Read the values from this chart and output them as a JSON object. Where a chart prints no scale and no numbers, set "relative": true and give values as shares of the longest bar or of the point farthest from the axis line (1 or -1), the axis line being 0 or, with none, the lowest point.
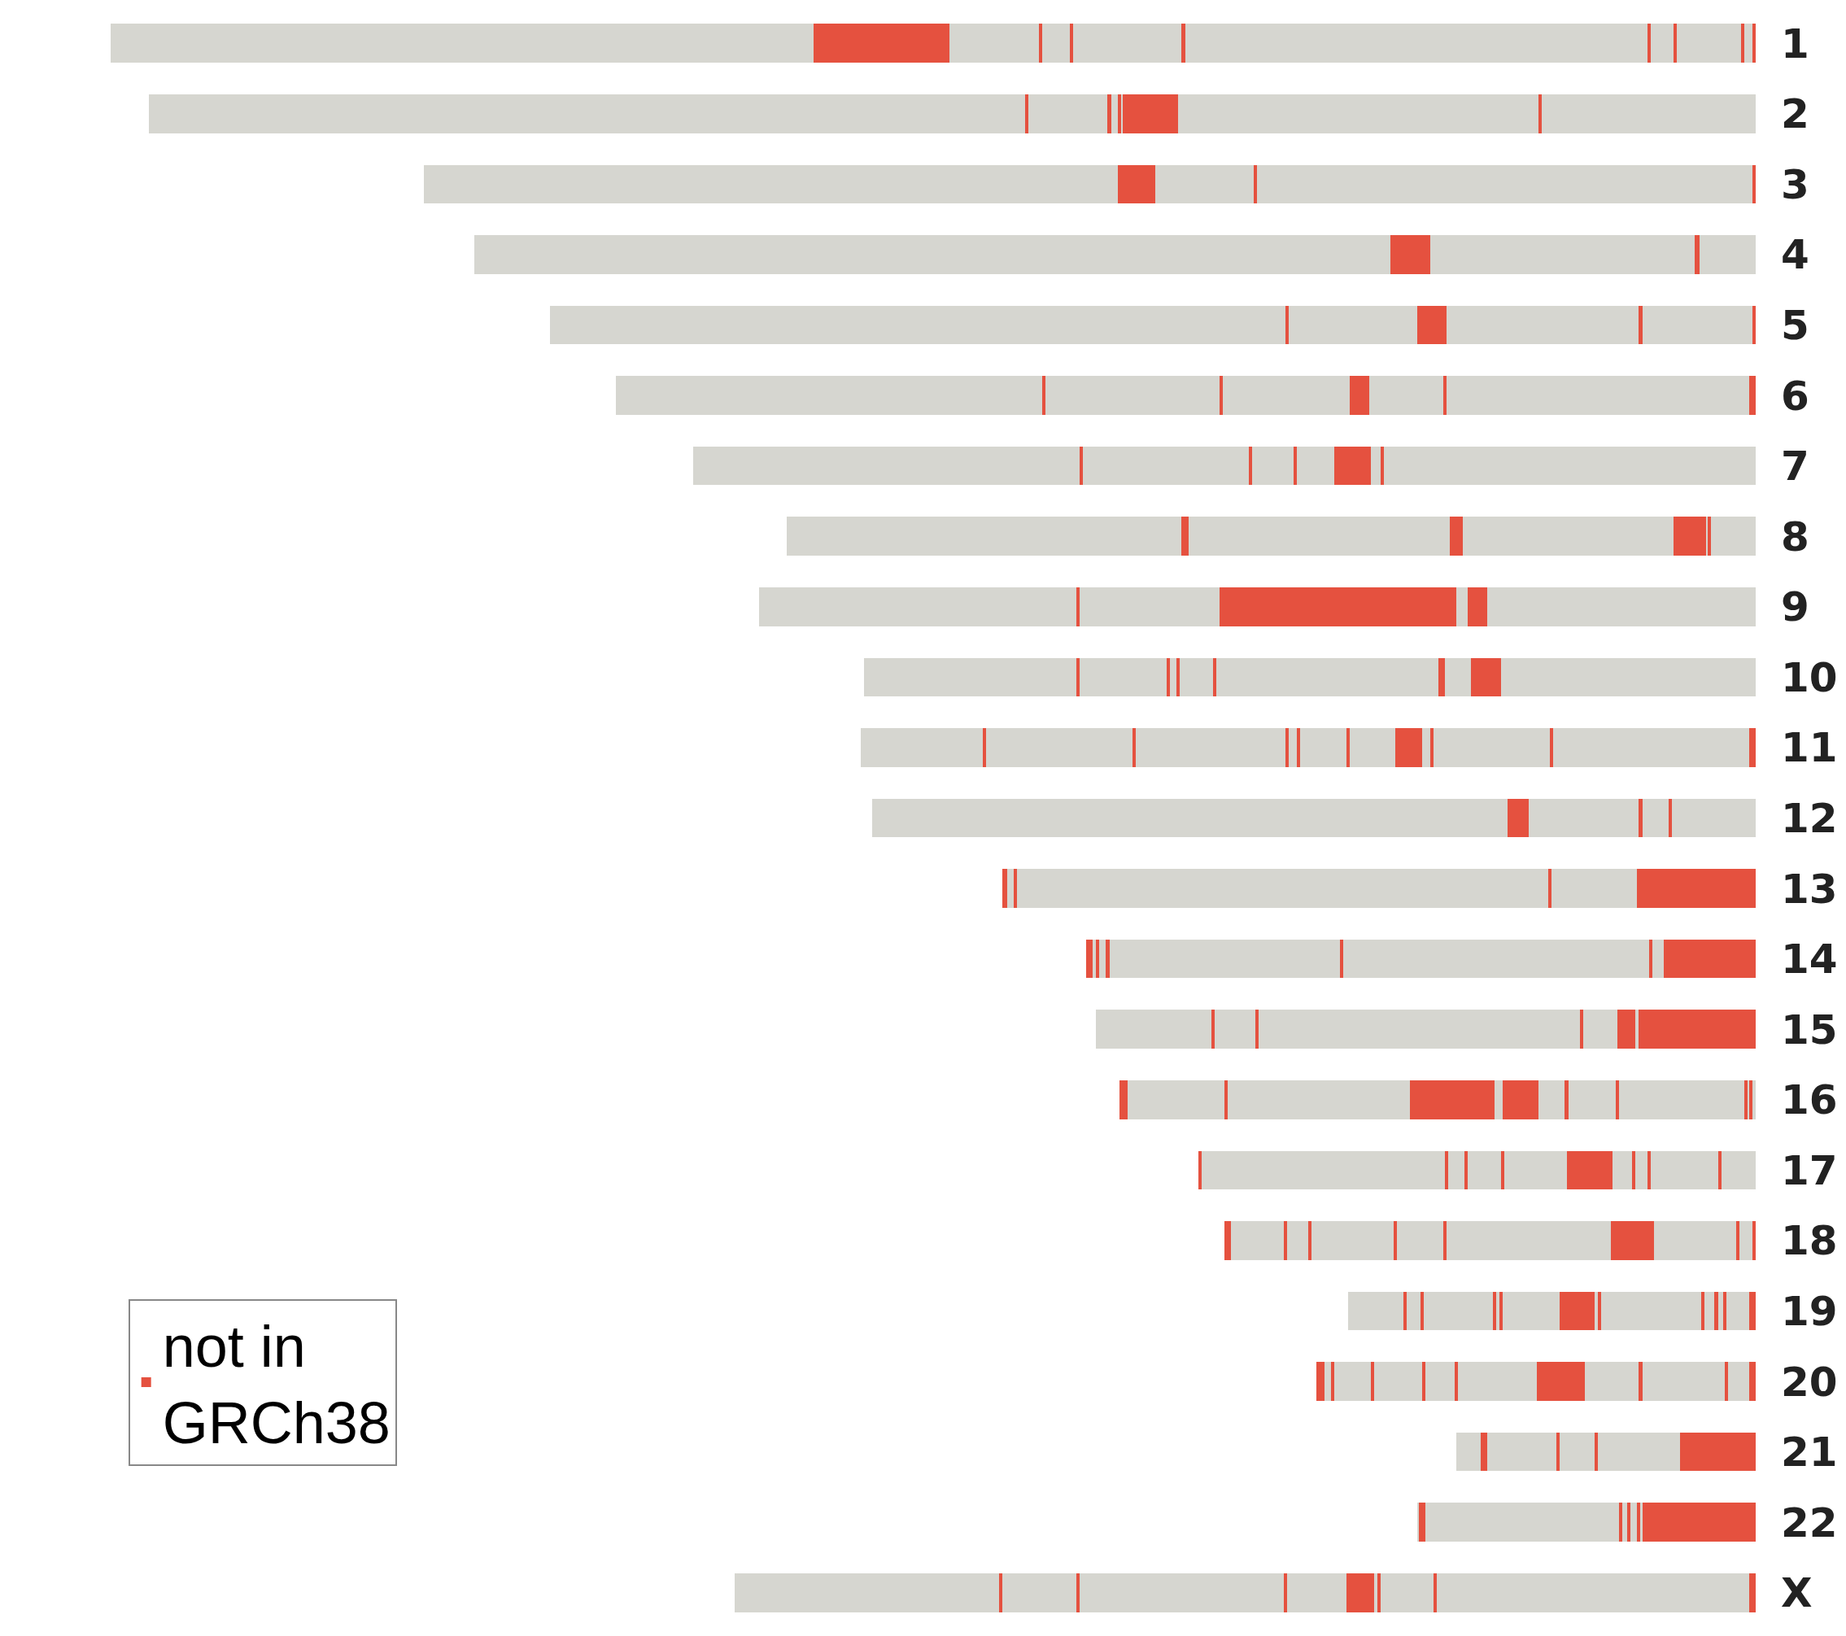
{
  "chart_data": {
    "type": "bar",
    "orientation": "horizontal",
    "stacked": true,
    "relative": true,
    "legend": "bottom left",
    "categories": [
      "1",
      "2",
      "3",
      "4",
      "5",
      "6",
      "7",
      "8",
      "9",
      "10",
      "11",
      "12",
      "13",
      "14",
      "15",
      "16",
      "17",
      "18",
      "19",
      "20",
      "21",
      "22",
      "X"
    ],
    "series": [
      {
        "name": "not in GRCh38",
        "color": "#e5513f",
        "values": [
          0.002,
          null,
          0.002,
          null,
          0.002,
          0.004,
          null,
          null,
          null,
          null,
          0.004,
          null,
          0.072,
          0.056,
          0.071,
          null,
          null,
          0.002,
          0.004,
          0.004,
          0.046,
          0.069,
          0.004
        ]
      },
      {
        "color": "#d6d6d0",
        "values": [
          0.005,
          0.13,
          0.301,
          0.034,
          0.067,
          0.184,
          0.226,
          0.027,
          0.163,
          0.155,
          0.119,
          0.051,
          0.052,
          0.007,
          0.002,
          0.002,
          0.021,
          0.008,
          0.014,
          0.013,
          0.05,
          0.001,
          0.19
        ]
      },
      {
        "color": "#e5513f",
        "values": [
          0.002,
          0.002,
          0.002,
          0.003,
          0.002,
          0.002,
          0.002,
          0.002,
          0.012,
          0.018,
          0.002,
          0.002,
          0.002,
          0.002,
          0.011,
          0.002,
          0.002,
          0.002,
          0.002,
          0.002,
          0.002,
          0.002,
          0.002
        ]
      },
      {
        "color": "#d6d6d0",
        "values": [
          0.039,
          0.219,
          0.06,
          0.161,
          0.117,
          0.045,
          0.006,
          0.001,
          0.007,
          0.016,
          0.071,
          0.016,
          0.323,
          0.186,
          0.021,
          0.001,
          0.041,
          0.05,
          0.003,
          0.05,
          0.021,
          0.004,
          0.032
        ]
      },
      {
        "color": "#e5513f",
        "values": [
          0.002,
          0.034,
          0.023,
          0.024,
          0.018,
          0.012,
          0.022,
          0.02,
          0.144,
          0.004,
          0.002,
          0.002,
          0.002,
          0.002,
          0.002,
          0.002,
          0.002,
          0.026,
          0.002,
          0.002,
          0.002,
          0.002,
          0.002
        ]
      },
      {
        "color": "#d6d6d0",
        "values": [
          0.014,
          0.001,
          0.422,
          0.557,
          0.078,
          0.077,
          0.023,
          0.128,
          0.085,
          0.135,
          0.005,
          0.067,
          0.004,
          0.14,
          0.195,
          0.076,
          0.007,
          0.1,
          0.006,
          0.033,
          0.042,
          0.003,
          0.002
        ]
      },
      {
        "color": "#e5513f",
        "values": [
          0.002,
          0.002,
          null,
          null,
          0.002,
          0.002,
          0.002,
          0.008,
          0.002,
          0.002,
          0.016,
          0.013,
          0.003,
          0.002,
          0.002,
          0.002,
          0.002,
          0.002,
          0.002,
          0.029,
          0.004,
          0.002,
          0.017
        ]
      },
      {
        "color": "#d6d6d0",
        "values": [
          0.281,
          0.004,
          null,
          null,
          0.447,
          0.106,
          0.025,
          0.159,
          0.193,
          0.02,
          0.028,
          0.386,
          null,
          0.004,
          0.025,
          0.029,
          0.012,
          0.028,
          0.061,
          0.048,
          0.015,
          0.118,
          0.036
        ]
      },
      {
        "color": "#e5513f",
        "values": [
          0.002,
          0.002,
          null,
          null,
          null,
          0.002,
          0.002,
          0.004,
          null,
          0.002,
          0.002,
          null,
          null,
          0.002,
          0.002,
          0.002,
          0.028,
          0.002,
          0.002,
          0.002,
          null,
          0.004,
          0.002
        ]
      },
      {
        "color": "#d6d6d0",
        "values": [
          0.066,
          0.048,
          null,
          null,
          null,
          0.259,
          0.101,
          0.24,
          null,
          0.004,
          0.028,
          null,
          null,
          0.002,
          0.07,
          0.016,
          0.038,
          0.05,
          0.002,
          0.018,
          null,
          0.001,
          0.124
        ]
      },
      {
        "color": "#e5513f",
        "values": [
          0.002,
          0.002,
          null,
          null,
          null,
          null,
          0.002,
          null,
          null,
          0.002,
          0.002,
          null,
          null,
          0.004,
          null,
          0.022,
          0.002,
          0.002,
          0.021,
          0.002,
          null,
          null,
          0.002
        ]
      },
      {
        "color": "#d6d6d0",
        "values": [
          0.017,
          0.533,
          null,
          null,
          null,
          null,
          0.235,
          null,
          null,
          0.053,
          0.005,
          null,
          null,
          null,
          null,
          0.005,
          0.02,
          0.013,
          0.035,
          0.029,
          null,
          null,
          0.045
        ]
      },
      {
        "color": "#e5513f",
        "values": [
          0.002,
          null,
          null,
          null,
          null,
          null,
          null,
          null,
          null,
          0.002,
          0.002,
          null,
          null,
          null,
          null,
          0.051,
          0.002,
          0.002,
          0.002,
          0.002,
          null,
          null,
          0.002
        ]
      },
      {
        "color": "#d6d6d0",
        "values": [
          0.054,
          null,
          null,
          null,
          null,
          null,
          null,
          null,
          null,
          0.129,
          0.091,
          null,
          null,
          null,
          null,
          0.111,
          0.01,
          0.032,
          0.002,
          0.022,
          null,
          null,
          0.161
        ]
      },
      {
        "color": "#e5513f",
        "values": [
          0.083,
          null,
          null,
          null,
          null,
          null,
          null,
          null,
          null,
          null,
          0.002,
          null,
          null,
          null,
          null,
          0.002,
          0.002,
          0.004,
          0.002,
          0.002,
          null,
          null,
          null
        ]
      },
      {
        "color": "#d6d6d0",
        "values": [
          0.427,
          null,
          null,
          null,
          null,
          null,
          null,
          null,
          null,
          null,
          0.089,
          null,
          null,
          null,
          null,
          0.059,
          0.148,
          null,
          0.042,
          0.004,
          null,
          null,
          null
        ]
      },
      {
        "color": "#e5513f",
        "values": [
          null,
          null,
          null,
          null,
          null,
          null,
          null,
          null,
          null,
          null,
          0.002,
          null,
          null,
          null,
          null,
          0.005,
          0.002,
          null,
          0.002,
          0.005,
          null,
          null,
          null
        ]
      },
      {
        "color": "#d6d6d0",
        "values": [
          null,
          null,
          null,
          null,
          null,
          null,
          null,
          null,
          null,
          null,
          0.074,
          null,
          null,
          null,
          null,
          null,
          null,
          null,
          0.008,
          null,
          null,
          null,
          null
        ]
      },
      {
        "color": "#e5513f",
        "values": [
          null,
          null,
          null,
          null,
          null,
          null,
          null,
          null,
          null,
          null,
          null,
          null,
          null,
          null,
          null,
          null,
          null,
          null,
          0.002,
          null,
          null,
          null,
          null
        ]
      },
      {
        "color": "#d6d6d0",
        "values": [
          null,
          null,
          null,
          null,
          null,
          null,
          null,
          null,
          null,
          null,
          null,
          null,
          null,
          null,
          null,
          null,
          null,
          null,
          0.034,
          null,
          null,
          null,
          null
        ]
      }
    ]
  }
}
